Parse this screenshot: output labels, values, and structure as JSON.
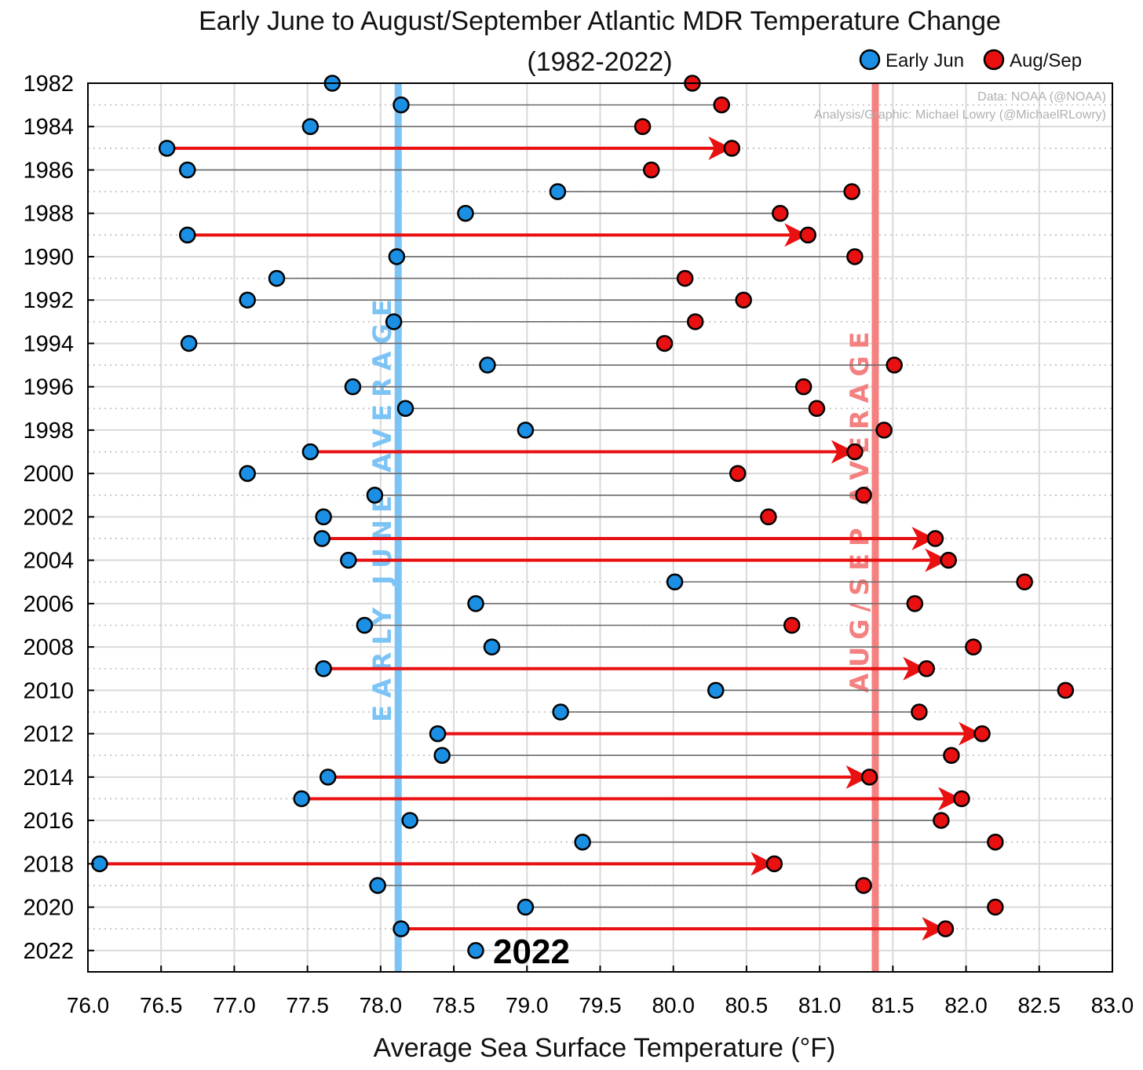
{
  "chart_data": {
    "type": "dumbbell",
    "title": "Early June to August/September Atlantic MDR Temperature Change",
    "subtitle": "(1982-2022)",
    "xlabel": "Average Sea Surface Temperature (°F)",
    "xlim": [
      76.0,
      83.0
    ],
    "xticks": [
      "76.0",
      "76.5",
      "77.0",
      "77.5",
      "78.0",
      "78.5",
      "79.0",
      "79.5",
      "80.0",
      "80.5",
      "81.0",
      "81.5",
      "82.0",
      "82.5",
      "83.0"
    ],
    "ytick_labels": [
      "1982",
      "1984",
      "1986",
      "1988",
      "1990",
      "1992",
      "1994",
      "1996",
      "1998",
      "2000",
      "2002",
      "2004",
      "2006",
      "2008",
      "2010",
      "2012",
      "2014",
      "2016",
      "2018",
      "2020",
      "2022"
    ],
    "grid": true,
    "legend": {
      "placement": "top-right",
      "entries": [
        {
          "label": "Early Jun",
          "color": "#1a8fe3"
        },
        {
          "label": "Aug/Sep",
          "color": "#e81010"
        }
      ]
    },
    "credits": [
      "Data: NOAA (@NOAA)",
      "Analysis/Graphic: Michael Lowry (@MichaelRLowry)"
    ],
    "reference_lines": [
      {
        "label": "EARLY JUNE AVERAGE",
        "value": 78.12,
        "color": "#7cc4f5"
      },
      {
        "label": "AUG/SEP AVERAGE",
        "value": 81.38,
        "color": "#f58080"
      }
    ],
    "callout": {
      "label": "2022",
      "year": 2022
    },
    "series_colors": {
      "early_jun": "#1a8fe3",
      "aug_sep": "#e81010",
      "connector": "#6b6b6b",
      "arrow": "#e81010"
    },
    "data": [
      {
        "year": 1982,
        "early_jun": 77.67,
        "aug_sep": 80.13,
        "arrow": false
      },
      {
        "year": 1983,
        "early_jun": 78.14,
        "aug_sep": 80.33,
        "arrow": false
      },
      {
        "year": 1984,
        "early_jun": 77.52,
        "aug_sep": 79.79,
        "arrow": false
      },
      {
        "year": 1985,
        "early_jun": 76.54,
        "aug_sep": 80.4,
        "arrow": true
      },
      {
        "year": 1986,
        "early_jun": 76.68,
        "aug_sep": 79.85,
        "arrow": false
      },
      {
        "year": 1987,
        "early_jun": 79.21,
        "aug_sep": 81.22,
        "arrow": false
      },
      {
        "year": 1988,
        "early_jun": 78.58,
        "aug_sep": 80.73,
        "arrow": false
      },
      {
        "year": 1989,
        "early_jun": 76.68,
        "aug_sep": 80.92,
        "arrow": true
      },
      {
        "year": 1990,
        "early_jun": 78.11,
        "aug_sep": 81.24,
        "arrow": false
      },
      {
        "year": 1991,
        "early_jun": 77.29,
        "aug_sep": 80.08,
        "arrow": false
      },
      {
        "year": 1992,
        "early_jun": 77.09,
        "aug_sep": 80.48,
        "arrow": false
      },
      {
        "year": 1993,
        "early_jun": 78.09,
        "aug_sep": 80.15,
        "arrow": false
      },
      {
        "year": 1994,
        "early_jun": 76.69,
        "aug_sep": 79.94,
        "arrow": false
      },
      {
        "year": 1995,
        "early_jun": 78.73,
        "aug_sep": 81.51,
        "arrow": false
      },
      {
        "year": 1996,
        "early_jun": 77.81,
        "aug_sep": 80.89,
        "arrow": false
      },
      {
        "year": 1997,
        "early_jun": 78.17,
        "aug_sep": 80.98,
        "arrow": false
      },
      {
        "year": 1998,
        "early_jun": 78.99,
        "aug_sep": 81.44,
        "arrow": false
      },
      {
        "year": 1999,
        "early_jun": 77.52,
        "aug_sep": 81.24,
        "arrow": true
      },
      {
        "year": 2000,
        "early_jun": 77.09,
        "aug_sep": 80.44,
        "arrow": false
      },
      {
        "year": 2001,
        "early_jun": 77.96,
        "aug_sep": 81.3,
        "arrow": false
      },
      {
        "year": 2002,
        "early_jun": 77.61,
        "aug_sep": 80.65,
        "arrow": false
      },
      {
        "year": 2003,
        "early_jun": 77.6,
        "aug_sep": 81.79,
        "arrow": true
      },
      {
        "year": 2004,
        "early_jun": 77.78,
        "aug_sep": 81.88,
        "arrow": true
      },
      {
        "year": 2005,
        "early_jun": 80.01,
        "aug_sep": 82.4,
        "arrow": false
      },
      {
        "year": 2006,
        "early_jun": 78.65,
        "aug_sep": 81.65,
        "arrow": false
      },
      {
        "year": 2007,
        "early_jun": 77.89,
        "aug_sep": 80.81,
        "arrow": false
      },
      {
        "year": 2008,
        "early_jun": 78.76,
        "aug_sep": 82.05,
        "arrow": false
      },
      {
        "year": 2009,
        "early_jun": 77.61,
        "aug_sep": 81.73,
        "arrow": true
      },
      {
        "year": 2010,
        "early_jun": 80.29,
        "aug_sep": 82.68,
        "arrow": false
      },
      {
        "year": 2011,
        "early_jun": 79.23,
        "aug_sep": 81.68,
        "arrow": false
      },
      {
        "year": 2012,
        "early_jun": 78.39,
        "aug_sep": 82.11,
        "arrow": true
      },
      {
        "year": 2013,
        "early_jun": 78.42,
        "aug_sep": 81.9,
        "arrow": false
      },
      {
        "year": 2014,
        "early_jun": 77.64,
        "aug_sep": 81.34,
        "arrow": true
      },
      {
        "year": 2015,
        "early_jun": 77.46,
        "aug_sep": 81.97,
        "arrow": true
      },
      {
        "year": 2016,
        "early_jun": 78.2,
        "aug_sep": 81.83,
        "arrow": false
      },
      {
        "year": 2017,
        "early_jun": 79.38,
        "aug_sep": 82.2,
        "arrow": false
      },
      {
        "year": 2018,
        "early_jun": 76.08,
        "aug_sep": 80.69,
        "arrow": true
      },
      {
        "year": 2019,
        "early_jun": 77.98,
        "aug_sep": 81.3,
        "arrow": false
      },
      {
        "year": 2020,
        "early_jun": 78.99,
        "aug_sep": 82.2,
        "arrow": false
      },
      {
        "year": 2021,
        "early_jun": 78.14,
        "aug_sep": 81.86,
        "arrow": true
      },
      {
        "year": 2022,
        "early_jun": 78.65,
        "aug_sep": null,
        "arrow": false
      }
    ]
  }
}
